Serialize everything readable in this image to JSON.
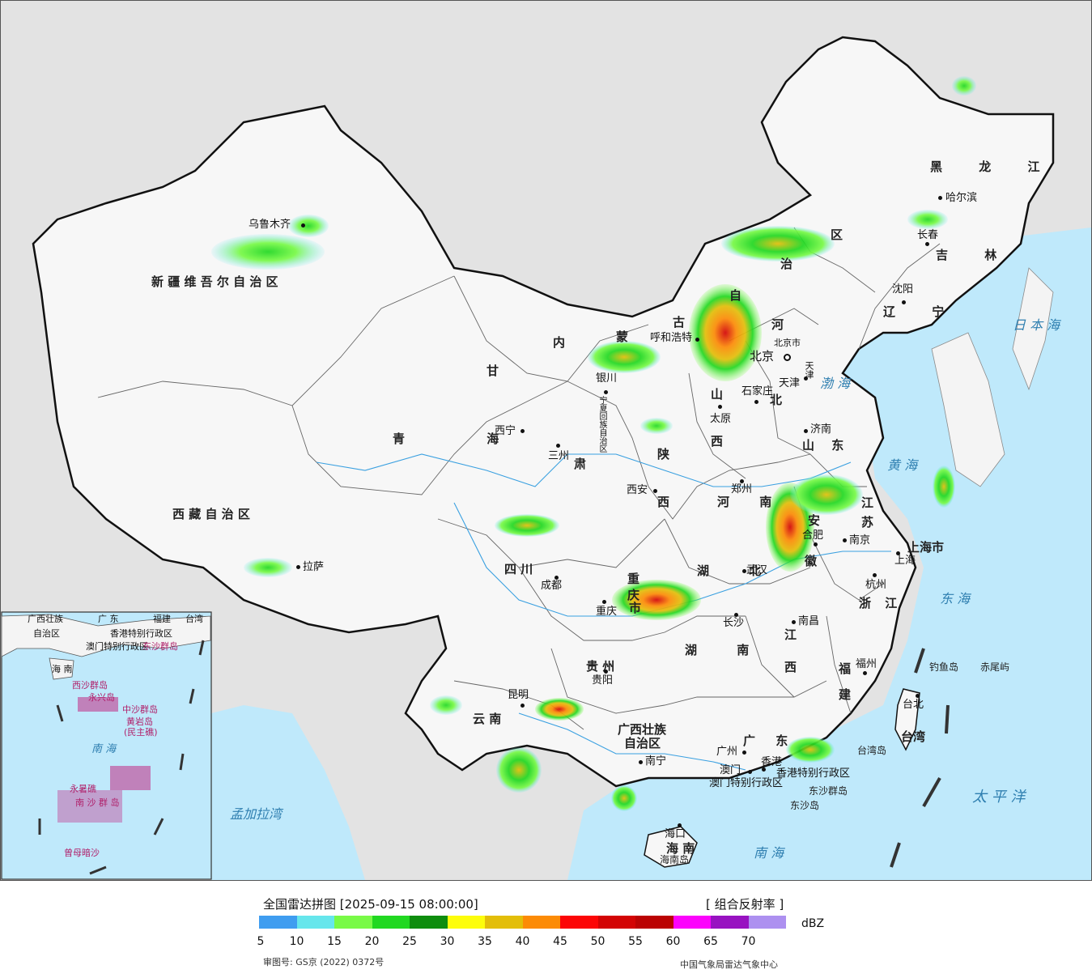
{
  "map": {
    "provinces": [
      {
        "id": "xinjiang",
        "label": "新 疆 维 吾 尔 自 治 区"
      },
      {
        "id": "xizang",
        "label": "西 藏 自 治 区"
      },
      {
        "id": "qinghai",
        "label": "青 海"
      },
      {
        "id": "gansu-gan",
        "label": "甘"
      },
      {
        "id": "gansu-su",
        "label": "肃"
      },
      {
        "id": "neimenggu-nei",
        "label": "内"
      },
      {
        "id": "neimenggu-meng",
        "label": "蒙"
      },
      {
        "id": "neimenggu-gu",
        "label": "古"
      },
      {
        "id": "neimenggu-zi",
        "label": "自"
      },
      {
        "id": "neimenggu-zhi",
        "label": "治"
      },
      {
        "id": "neimenggu-qu",
        "label": "区"
      },
      {
        "id": "heilongjiang",
        "label": "黑 龙 江"
      },
      {
        "id": "jilin",
        "label": "吉 林"
      },
      {
        "id": "liaoning",
        "label": "辽 宁"
      },
      {
        "id": "hebei-he",
        "label": "河"
      },
      {
        "id": "hebei-bei",
        "label": "北"
      },
      {
        "id": "shanxi-shan",
        "label": "山"
      },
      {
        "id": "shanxi-xi",
        "label": "西"
      },
      {
        "id": "shandong",
        "label": "山 东"
      },
      {
        "id": "shaanxi-shan",
        "label": "陕"
      },
      {
        "id": "shaanxi-xi",
        "label": "西"
      },
      {
        "id": "henan",
        "label": "河 南"
      },
      {
        "id": "jiangsu-jiang",
        "label": "江"
      },
      {
        "id": "jiangsu-su",
        "label": "苏"
      },
      {
        "id": "anhui-an",
        "label": "安"
      },
      {
        "id": "anhui-hui",
        "label": "徽"
      },
      {
        "id": "hubei",
        "label": "湖 北"
      },
      {
        "id": "sichuan",
        "label": "四    川"
      },
      {
        "id": "chongqing-a",
        "label": "重"
      },
      {
        "id": "chongqing-b",
        "label": "庆"
      },
      {
        "id": "chongqing-c",
        "label": "市"
      },
      {
        "id": "zhejiang",
        "label": "浙 江"
      },
      {
        "id": "shanghai",
        "label": "上海市"
      },
      {
        "id": "hunan",
        "label": "湖 南"
      },
      {
        "id": "jiangxi-jiang",
        "label": "江"
      },
      {
        "id": "jiangxi-xi",
        "label": "西"
      },
      {
        "id": "fujian-fu",
        "label": "福"
      },
      {
        "id": "fujian-jian",
        "label": "建"
      },
      {
        "id": "guizhou",
        "label": "贵   州"
      },
      {
        "id": "yunnan",
        "label": "云   南"
      },
      {
        "id": "guangxi-a",
        "label": "广西壮族"
      },
      {
        "id": "guangxi-b",
        "label": "自治区"
      },
      {
        "id": "guangdong",
        "label": "广 东"
      },
      {
        "id": "hainan",
        "label": "海 南"
      },
      {
        "id": "taiwan",
        "label": "台湾"
      },
      {
        "id": "ningxia",
        "label": "宁夏回族自治区"
      },
      {
        "id": "hongkong",
        "label": "香港特别行政区"
      },
      {
        "id": "macau",
        "label": "澳门特别行政区"
      },
      {
        "id": "beijing-city",
        "label": "北京市"
      },
      {
        "id": "tianjin-city",
        "label": "天津"
      }
    ],
    "cities": [
      {
        "id": "urumqi",
        "label": "乌鲁木齐"
      },
      {
        "id": "lhasa",
        "label": "拉萨"
      },
      {
        "id": "xining",
        "label": "西宁"
      },
      {
        "id": "lanzhou",
        "label": "三州"
      },
      {
        "id": "yinchuan",
        "label": "银川"
      },
      {
        "id": "hohhot",
        "label": "呼和浩特"
      },
      {
        "id": "beijing",
        "label": "北京"
      },
      {
        "id": "tianjin",
        "label": "天津"
      },
      {
        "id": "shijiazhuang",
        "label": "石家庄"
      },
      {
        "id": "taiyuan",
        "label": "太原"
      },
      {
        "id": "jinan",
        "label": "济南"
      },
      {
        "id": "xian",
        "label": "西安"
      },
      {
        "id": "zhengzhou",
        "label": "郑州"
      },
      {
        "id": "hefei",
        "label": "合肥"
      },
      {
        "id": "nanjing",
        "label": "南京"
      },
      {
        "id": "shanghai-c",
        "label": "上海"
      },
      {
        "id": "hangzhou",
        "label": "杭州"
      },
      {
        "id": "wuhan",
        "label": "武汉"
      },
      {
        "id": "changsha",
        "label": "长沙"
      },
      {
        "id": "nanchang",
        "label": "南昌"
      },
      {
        "id": "fuzhou",
        "label": "福州"
      },
      {
        "id": "taibei",
        "label": "台北"
      },
      {
        "id": "chengdu",
        "label": "成都"
      },
      {
        "id": "chongqing",
        "label": "重庆"
      },
      {
        "id": "guiyang",
        "label": "贵阳"
      },
      {
        "id": "kunming",
        "label": "昆明"
      },
      {
        "id": "nanning",
        "label": "南宁"
      },
      {
        "id": "guangzhou",
        "label": "广州"
      },
      {
        "id": "hongkong-c",
        "label": "香港"
      },
      {
        "id": "macau-c",
        "label": "澳门"
      },
      {
        "id": "haikou",
        "label": "海口"
      },
      {
        "id": "harbin",
        "label": "哈尔滨"
      },
      {
        "id": "changchun",
        "label": "长春"
      },
      {
        "id": "shenyang",
        "label": "沈阳"
      }
    ],
    "seas": [
      {
        "id": "bohai",
        "label": "渤 海"
      },
      {
        "id": "huanghai",
        "label": "黄 海"
      },
      {
        "id": "donghai",
        "label": "东 海"
      },
      {
        "id": "nanhai",
        "label": "南   海"
      },
      {
        "id": "taipingyang",
        "label": "太  平  洋"
      },
      {
        "id": "ribenhai",
        "label": "日 本 海"
      },
      {
        "id": "mengjialawan",
        "label": "孟加拉湾"
      }
    ],
    "islands": [
      {
        "id": "diaoyudao",
        "label": "钓鱼岛"
      },
      {
        "id": "chiweiyu",
        "label": "赤尾屿"
      },
      {
        "id": "taiwandao",
        "label": "台湾岛"
      },
      {
        "id": "dongshaqundao",
        "label": "东沙群岛"
      },
      {
        "id": "dongshadao",
        "label": "东沙岛"
      },
      {
        "id": "hainandao",
        "label": "海南岛"
      }
    ],
    "inset": {
      "labels": [
        {
          "id": "ins-guangxi",
          "label": "广西壮族"
        },
        {
          "id": "ins-zizhiqu",
          "label": "自治区"
        },
        {
          "id": "ins-guangdong",
          "label": "广 东"
        },
        {
          "id": "ins-fujian",
          "label": "福建"
        },
        {
          "id": "ins-taiwan",
          "label": "台湾"
        },
        {
          "id": "ins-aomen",
          "label": "澳门特别行政区"
        },
        {
          "id": "ins-xianggang",
          "label": "香港特别行政区"
        },
        {
          "id": "ins-dongsha",
          "label": "东沙群岛"
        },
        {
          "id": "ins-hainan",
          "label": "海 南"
        },
        {
          "id": "ins-xisha",
          "label": "西沙群岛"
        },
        {
          "id": "ins-yongxing",
          "label": "永兴岛"
        },
        {
          "id": "ins-zhongsha",
          "label": "中沙群岛"
        },
        {
          "id": "ins-huangyan",
          "label": "黄岩岛"
        },
        {
          "id": "ins-minzhujiao",
          "label": "(民主礁)"
        },
        {
          "id": "ins-nanhai",
          "label": "南  海"
        },
        {
          "id": "ins-yongshu",
          "label": "永暑礁"
        },
        {
          "id": "ins-nansha",
          "label": "南 沙 群 岛"
        },
        {
          "id": "ins-zengmu",
          "label": "曾母暗沙"
        }
      ]
    }
  },
  "legend": {
    "title": "全国雷达拼图 [2025-09-15 08:00:00]",
    "product": "[ 组合反射率 ]",
    "unit": "dBZ",
    "colors": [
      "#3f9df0",
      "#66e6ec",
      "#79fa47",
      "#21d821",
      "#0e8d0e",
      "#fdfd0b",
      "#e3be09",
      "#fc8b06",
      "#fc0606",
      "#d30404",
      "#bb0303",
      "#fc03fc",
      "#9812c1",
      "#ad90f0"
    ],
    "ticks": [
      "5",
      "10",
      "15",
      "20",
      "25",
      "30",
      "35",
      "40",
      "45",
      "50",
      "55",
      "60",
      "65",
      "70"
    ],
    "approval_number": "审图号: GS京 (2022) 0372号",
    "agency": "中国气象局雷达气象中心"
  }
}
